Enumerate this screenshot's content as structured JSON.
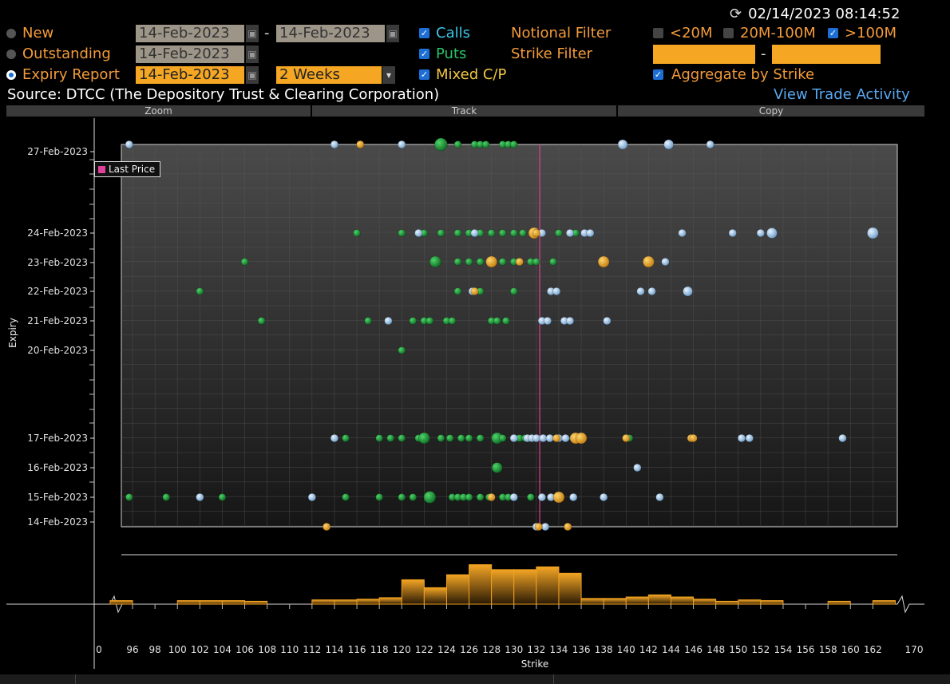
{
  "header": {
    "timestamp": "02/14/2023 08:14:52",
    "refresh_icon": "refresh-icon"
  },
  "report_types": [
    {
      "label": "New",
      "selected": false
    },
    {
      "label": "Outstanding",
      "selected": false
    },
    {
      "label": "Expiry Report",
      "selected": true
    }
  ],
  "dates": {
    "new_from": "14-Feb-2023",
    "new_to": "14-Feb-2023",
    "outstanding": "14-Feb-2023",
    "expiry": "14-Feb-2023",
    "range_sep": "-"
  },
  "period": {
    "value": "2 Weeks"
  },
  "option_types": [
    {
      "label": "Calls",
      "checked": true
    },
    {
      "label": "Puts",
      "checked": true
    },
    {
      "label": "Mixed C/P",
      "checked": true
    }
  ],
  "filters": {
    "notional_label": "Notional Filter",
    "strike_label": "Strike Filter",
    "notional": [
      {
        "label": "<20M",
        "checked": false
      },
      {
        "label": "20M-100M",
        "checked": false
      },
      {
        "label": ">100M",
        "checked": true
      }
    ],
    "strike_sep": "-",
    "aggregate_label": "Aggregate by Strike",
    "aggregate_checked": true
  },
  "source": {
    "text": "Source: DTCC (The Depository Trust & Clearing Corporation)",
    "link": "View Trade Activity"
  },
  "toolbar": {
    "zoom": "Zoom",
    "track": "Track",
    "copy": "Copy"
  },
  "legend": {
    "last_price": "Last Price"
  },
  "axes": {
    "ylabel": "Expiry",
    "xlabel": "Strike",
    "yticks": [
      "27-Feb-2023",
      "24-Feb-2023",
      "23-Feb-2023",
      "22-Feb-2023",
      "21-Feb-2023",
      "20-Feb-2023",
      "17-Feb-2023",
      "16-Feb-2023",
      "15-Feb-2023",
      "14-Feb-2023"
    ],
    "xticks": [
      "0",
      "96",
      "98",
      "100",
      "102",
      "104",
      "106",
      "108",
      "110",
      "112",
      "114",
      "116",
      "118",
      "120",
      "122",
      "124",
      "126",
      "128",
      "130",
      "132",
      "134",
      "136",
      "138",
      "140",
      "142",
      "144",
      "146",
      "148",
      "150",
      "152",
      "154",
      "156",
      "158",
      "160",
      "162",
      "170"
    ]
  },
  "colors": {
    "call": "#1e9b3a",
    "put": "#a9c9ea",
    "mixed": "#f0b030",
    "last_price": "#e0409a",
    "histogram": "#f0a020"
  },
  "chart_data": {
    "type": "scatter",
    "last_price": 132.3,
    "xlabel": "Strike",
    "ylabel": "Expiry",
    "series": [
      {
        "name": "Calls",
        "points": [
          [
            125,
            "27-Feb-2023"
          ],
          [
            126.5,
            "27-Feb-2023"
          ],
          [
            127,
            "27-Feb-2023"
          ],
          [
            127.5,
            "27-Feb-2023"
          ],
          [
            129,
            "27-Feb-2023"
          ],
          [
            129.5,
            "27-Feb-2023"
          ],
          [
            130,
            "27-Feb-2023"
          ],
          [
            123.5,
            "27-Feb-2023"
          ],
          [
            116,
            "24-Feb-2023"
          ],
          [
            120,
            "24-Feb-2023"
          ],
          [
            122,
            "24-Feb-2023"
          ],
          [
            123.5,
            "24-Feb-2023"
          ],
          [
            125,
            "24-Feb-2023"
          ],
          [
            126,
            "24-Feb-2023"
          ],
          [
            127,
            "24-Feb-2023"
          ],
          [
            128,
            "24-Feb-2023"
          ],
          [
            129,
            "24-Feb-2023"
          ],
          [
            130,
            "24-Feb-2023"
          ],
          [
            130.8,
            "24-Feb-2023"
          ],
          [
            134,
            "24-Feb-2023"
          ],
          [
            135.5,
            "24-Feb-2023"
          ],
          [
            106,
            "23-Feb-2023"
          ],
          [
            123,
            "23-Feb-2023"
          ],
          [
            125,
            "23-Feb-2023"
          ],
          [
            126,
            "23-Feb-2023"
          ],
          [
            127,
            "23-Feb-2023"
          ],
          [
            129,
            "23-Feb-2023"
          ],
          [
            130,
            "23-Feb-2023"
          ],
          [
            131.5,
            "23-Feb-2023"
          ],
          [
            132,
            "23-Feb-2023"
          ],
          [
            133.5,
            "23-Feb-2023"
          ],
          [
            102,
            "22-Feb-2023"
          ],
          [
            125,
            "22-Feb-2023"
          ],
          [
            127,
            "22-Feb-2023"
          ],
          [
            130,
            "22-Feb-2023"
          ],
          [
            107.5,
            "21-Feb-2023"
          ],
          [
            117,
            "21-Feb-2023"
          ],
          [
            121,
            "21-Feb-2023"
          ],
          [
            122,
            "21-Feb-2023"
          ],
          [
            122.5,
            "21-Feb-2023"
          ],
          [
            124,
            "21-Feb-2023"
          ],
          [
            124.5,
            "21-Feb-2023"
          ],
          [
            128,
            "21-Feb-2023"
          ],
          [
            128.5,
            "21-Feb-2023"
          ],
          [
            129.3,
            "21-Feb-2023"
          ],
          [
            120,
            "20-Feb-2023"
          ],
          [
            115,
            "17-Feb-2023"
          ],
          [
            118,
            "17-Feb-2023"
          ],
          [
            119,
            "17-Feb-2023"
          ],
          [
            120,
            "17-Feb-2023"
          ],
          [
            121.5,
            "17-Feb-2023"
          ],
          [
            122,
            "17-Feb-2023"
          ],
          [
            123.5,
            "17-Feb-2023"
          ],
          [
            124.3,
            "17-Feb-2023"
          ],
          [
            125.3,
            "17-Feb-2023"
          ],
          [
            126,
            "17-Feb-2023"
          ],
          [
            127,
            "17-Feb-2023"
          ],
          [
            128.5,
            "17-Feb-2023"
          ],
          [
            129,
            "17-Feb-2023"
          ],
          [
            130.5,
            "17-Feb-2023"
          ],
          [
            131,
            "17-Feb-2023"
          ],
          [
            140.3,
            "17-Feb-2023"
          ],
          [
            128.5,
            "16-Feb-2023"
          ],
          [
            95.7,
            "15-Feb-2023"
          ],
          [
            99,
            "15-Feb-2023"
          ],
          [
            104,
            "15-Feb-2023"
          ],
          [
            115,
            "15-Feb-2023"
          ],
          [
            118,
            "15-Feb-2023"
          ],
          [
            120,
            "15-Feb-2023"
          ],
          [
            121,
            "15-Feb-2023"
          ],
          [
            122.5,
            "15-Feb-2023"
          ],
          [
            124.5,
            "15-Feb-2023"
          ],
          [
            125,
            "15-Feb-2023"
          ],
          [
            125.5,
            "15-Feb-2023"
          ],
          [
            126,
            "15-Feb-2023"
          ],
          [
            127,
            "15-Feb-2023"
          ],
          [
            127.8,
            "15-Feb-2023"
          ],
          [
            129,
            "15-Feb-2023"
          ],
          [
            129.5,
            "15-Feb-2023"
          ],
          [
            131.5,
            "15-Feb-2023"
          ]
        ]
      },
      {
        "name": "Puts",
        "points": [
          [
            95.7,
            "27-Feb-2023"
          ],
          [
            114,
            "27-Feb-2023"
          ],
          [
            120,
            "27-Feb-2023"
          ],
          [
            139.7,
            "27-Feb-2023"
          ],
          [
            143.8,
            "27-Feb-2023"
          ],
          [
            147.5,
            "27-Feb-2023"
          ],
          [
            121.5,
            "24-Feb-2023"
          ],
          [
            126.5,
            "24-Feb-2023"
          ],
          [
            132.5,
            "24-Feb-2023"
          ],
          [
            135,
            "24-Feb-2023"
          ],
          [
            136.3,
            "24-Feb-2023"
          ],
          [
            136.8,
            "24-Feb-2023"
          ],
          [
            145,
            "24-Feb-2023"
          ],
          [
            149.5,
            "24-Feb-2023"
          ],
          [
            152,
            "24-Feb-2023"
          ],
          [
            153,
            "24-Feb-2023"
          ],
          [
            162,
            "24-Feb-2023"
          ],
          [
            143.5,
            "23-Feb-2023"
          ],
          [
            126.3,
            "22-Feb-2023"
          ],
          [
            133.3,
            "22-Feb-2023"
          ],
          [
            133.8,
            "22-Feb-2023"
          ],
          [
            141.3,
            "22-Feb-2023"
          ],
          [
            142.3,
            "22-Feb-2023"
          ],
          [
            145.5,
            "22-Feb-2023"
          ],
          [
            118.8,
            "21-Feb-2023"
          ],
          [
            132.5,
            "21-Feb-2023"
          ],
          [
            133,
            "21-Feb-2023"
          ],
          [
            134.5,
            "21-Feb-2023"
          ],
          [
            135,
            "21-Feb-2023"
          ],
          [
            138.3,
            "21-Feb-2023"
          ],
          [
            114,
            "17-Feb-2023"
          ],
          [
            130,
            "17-Feb-2023"
          ],
          [
            131.2,
            "17-Feb-2023"
          ],
          [
            131.6,
            "17-Feb-2023"
          ],
          [
            132,
            "17-Feb-2023"
          ],
          [
            132.6,
            "17-Feb-2023"
          ],
          [
            133.2,
            "17-Feb-2023"
          ],
          [
            134,
            "17-Feb-2023"
          ],
          [
            134.6,
            "17-Feb-2023"
          ],
          [
            135.3,
            "17-Feb-2023"
          ],
          [
            150.3,
            "17-Feb-2023"
          ],
          [
            151,
            "17-Feb-2023"
          ],
          [
            159.3,
            "17-Feb-2023"
          ],
          [
            141,
            "16-Feb-2023"
          ],
          [
            102,
            "15-Feb-2023"
          ],
          [
            112,
            "15-Feb-2023"
          ],
          [
            130,
            "15-Feb-2023"
          ],
          [
            132.5,
            "15-Feb-2023"
          ],
          [
            133.3,
            "15-Feb-2023"
          ],
          [
            135.3,
            "15-Feb-2023"
          ],
          [
            138,
            "15-Feb-2023"
          ],
          [
            143,
            "15-Feb-2023"
          ],
          [
            132,
            "14-Feb-2023"
          ],
          [
            132.8,
            "14-Feb-2023"
          ]
        ]
      },
      {
        "name": "Mixed C/P",
        "points": [
          [
            116.3,
            "27-Feb-2023"
          ],
          [
            131.8,
            "24-Feb-2023"
          ],
          [
            132,
            "24-Feb-2023"
          ],
          [
            128,
            "23-Feb-2023"
          ],
          [
            130.5,
            "23-Feb-2023"
          ],
          [
            138,
            "23-Feb-2023"
          ],
          [
            142,
            "23-Feb-2023"
          ],
          [
            126.5,
            "22-Feb-2023"
          ],
          [
            133.8,
            "17-Feb-2023"
          ],
          [
            135.5,
            "17-Feb-2023"
          ],
          [
            136,
            "17-Feb-2023"
          ],
          [
            140,
            "17-Feb-2023"
          ],
          [
            145.8,
            "17-Feb-2023"
          ],
          [
            146,
            "17-Feb-2023"
          ],
          [
            128,
            "15-Feb-2023"
          ],
          [
            134,
            "15-Feb-2023"
          ],
          [
            113.3,
            "14-Feb-2023"
          ],
          [
            132.2,
            "14-Feb-2023"
          ],
          [
            134.8,
            "14-Feb-2023"
          ]
        ]
      }
    ],
    "histogram": {
      "name": "Strike distribution",
      "bins": [
        [
          94,
          96,
          0.5
        ],
        [
          100,
          102,
          0.5
        ],
        [
          102,
          104,
          0.5
        ],
        [
          104,
          106,
          0.5
        ],
        [
          106,
          108,
          0.4
        ],
        [
          112,
          114,
          0.6
        ],
        [
          114,
          116,
          0.6
        ],
        [
          116,
          118,
          0.7
        ],
        [
          118,
          120,
          0.9
        ],
        [
          120,
          122,
          3.4
        ],
        [
          122,
          124,
          2.3
        ],
        [
          124,
          126,
          4.1
        ],
        [
          126,
          128,
          5.5
        ],
        [
          128,
          130,
          4.8
        ],
        [
          130,
          132,
          4.8
        ],
        [
          132,
          134,
          5.2
        ],
        [
          134,
          136,
          4.3
        ],
        [
          136,
          138,
          0.8
        ],
        [
          138,
          140,
          0.8
        ],
        [
          140,
          142,
          1.0
        ],
        [
          142,
          144,
          1.3
        ],
        [
          144,
          146,
          1.0
        ],
        [
          146,
          148,
          0.7
        ],
        [
          148,
          150,
          0.4
        ],
        [
          150,
          152,
          0.6
        ],
        [
          152,
          154,
          0.5
        ],
        [
          158,
          160,
          0.4
        ],
        [
          162,
          164,
          0.5
        ]
      ]
    }
  }
}
